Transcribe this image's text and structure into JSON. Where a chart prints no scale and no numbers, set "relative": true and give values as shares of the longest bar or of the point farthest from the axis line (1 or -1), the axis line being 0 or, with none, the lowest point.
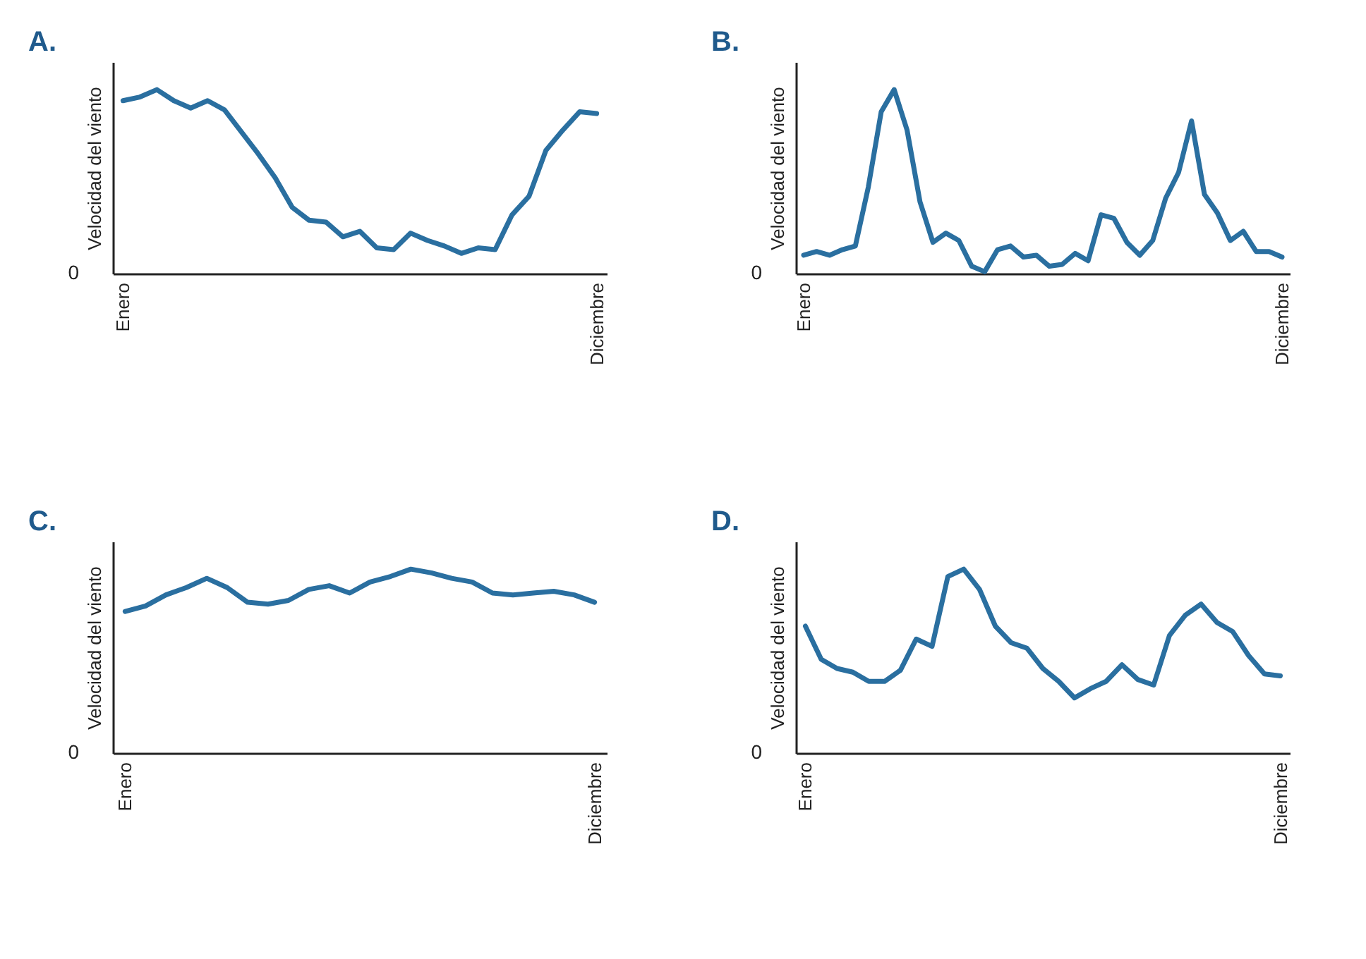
{
  "chart_data": [
    {
      "type": "line",
      "title": "A.",
      "ylabel": "Velocidad del viento",
      "relative": true,
      "annotations": [
        "0"
      ],
      "categories": [
        "Enero",
        null,
        null,
        null,
        null,
        null,
        null,
        null,
        null,
        null,
        null,
        null,
        null,
        null,
        null,
        null,
        null,
        null,
        null,
        null,
        null,
        null,
        null,
        null,
        null,
        null,
        null,
        null,
        "Diciembre"
      ],
      "series": [
        {
          "color": "#2a6fa0",
          "values": [
            0.94,
            0.96,
            1.0,
            0.94,
            0.9,
            0.94,
            0.89,
            0.77,
            0.65,
            0.52,
            0.36,
            0.29,
            0.28,
            0.2,
            0.23,
            0.14,
            0.13,
            0.22,
            0.18,
            0.15,
            0.11,
            0.14,
            0.13,
            0.32,
            0.42,
            0.67,
            0.78,
            0.88,
            0.87
          ]
        }
      ]
    },
    {
      "type": "line",
      "title": "B.",
      "ylabel": "Velocidad del viento",
      "relative": true,
      "annotations": [
        "0"
      ],
      "categories": [
        "Enero",
        null,
        null,
        null,
        null,
        null,
        null,
        null,
        null,
        null,
        null,
        null,
        null,
        null,
        null,
        null,
        null,
        null,
        null,
        null,
        null,
        null,
        null,
        null,
        null,
        null,
        null,
        null,
        null,
        null,
        null,
        null,
        null,
        null,
        null,
        null,
        null,
        "Diciembre"
      ],
      "series": [
        {
          "color": "#2a6fa0",
          "values": [
            0.1,
            0.12,
            0.1,
            0.13,
            0.15,
            0.47,
            0.88,
            1.0,
            0.78,
            0.39,
            0.17,
            0.22,
            0.18,
            0.04,
            0.01,
            0.13,
            0.15,
            0.09,
            0.1,
            0.04,
            0.05,
            0.11,
            0.07,
            0.32,
            0.3,
            0.17,
            0.1,
            0.18,
            0.41,
            0.55,
            0.83,
            0.43,
            0.33,
            0.18,
            0.23,
            0.12,
            0.12,
            0.09
          ]
        }
      ]
    },
    {
      "type": "line",
      "title": "C.",
      "ylabel": "Velocidad del viento",
      "relative": true,
      "annotations": [
        "0"
      ],
      "categories": [
        "Enero",
        null,
        null,
        null,
        null,
        null,
        null,
        null,
        null,
        null,
        null,
        null,
        null,
        null,
        null,
        null,
        null,
        null,
        null,
        null,
        null,
        null,
        null,
        "Diciembre"
      ],
      "series": [
        {
          "color": "#2a6fa0",
          "values": [
            0.77,
            0.8,
            0.86,
            0.9,
            0.95,
            0.9,
            0.82,
            0.81,
            0.83,
            0.89,
            0.91,
            0.87,
            0.93,
            0.96,
            1.0,
            0.98,
            0.95,
            0.93,
            0.87,
            0.86,
            0.87,
            0.88,
            0.86,
            0.82
          ]
        }
      ]
    },
    {
      "type": "line",
      "title": "D.",
      "ylabel": "Velocidad del viento",
      "relative": true,
      "annotations": [
        "0"
      ],
      "categories": [
        "Enero",
        null,
        null,
        null,
        null,
        null,
        null,
        null,
        null,
        null,
        null,
        null,
        null,
        null,
        null,
        null,
        null,
        null,
        null,
        null,
        null,
        null,
        null,
        null,
        null,
        null,
        null,
        null,
        null,
        null,
        "Diciembre"
      ],
      "series": [
        {
          "color": "#2a6fa0",
          "values": [
            0.69,
            0.51,
            0.46,
            0.44,
            0.39,
            0.39,
            0.45,
            0.62,
            0.58,
            0.96,
            1.0,
            0.89,
            0.69,
            0.6,
            0.57,
            0.46,
            0.39,
            0.3,
            0.35,
            0.39,
            0.48,
            0.4,
            0.37,
            0.64,
            0.75,
            0.81,
            0.71,
            0.66,
            0.53,
            0.43,
            0.42
          ]
        }
      ]
    }
  ]
}
